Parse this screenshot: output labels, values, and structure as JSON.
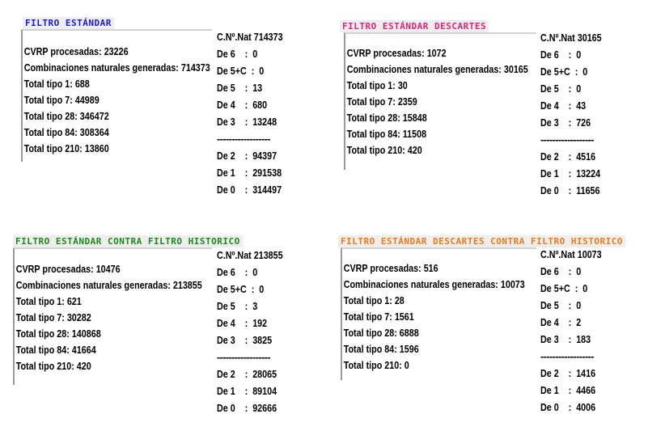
{
  "panels": [
    {
      "title": "FILTRO ESTÁNDAR",
      "title_color": "#1a1ad2",
      "title_bg": "#eeeeee",
      "lines": [
        "CVRP procesadas: 23226",
        "Combinaciones naturales generadas: 714373",
        "Total tipo 1: 688",
        "Total tipo 7: 44989",
        "Total tipo 28: 346472",
        "Total tipo 84: 308364",
        "Total tipo 210: 13860"
      ],
      "stats_header": "C.Nº.Nat 714373",
      "stats_top": [
        "De 6    :  0",
        "De 5+C  :  0",
        "De 5    :  13",
        "De 4    :  680",
        "De 3    :  13248"
      ],
      "separator": "------------------",
      "stats_bottom": [
        "De 2    :  94397",
        "De 1    :  291538",
        "De 0    :  314497"
      ]
    },
    {
      "title": "FILTRO ESTÁNDAR DESCARTES",
      "title_color": "#e0247a",
      "title_bg": "#eeeeee",
      "lines": [
        "CVRP procesadas: 1072",
        "Combinaciones naturales generadas: 30165",
        "Total tipo 1: 30",
        "Total tipo 7: 2359",
        "Total tipo 28: 15848",
        "Total tipo 84: 11508",
        "Total tipo 210: 420"
      ],
      "stats_header": "C.Nº.Nat 30165",
      "stats_top": [
        "De 6    :  0",
        "De 5+C  :  0",
        "De 5    :  0",
        "De 4    :  43",
        "De 3    :  726"
      ],
      "separator": "------------------",
      "stats_bottom": [
        "De 2    :  4516",
        "De 1    :  13224",
        "De 0    :  11656"
      ]
    },
    {
      "title": "FILTRO ESTÁNDAR CONTRA FILTRO HISTORICO",
      "title_color": "#1a8a1a",
      "title_bg": "#eeeeee",
      "lines": [
        "CVRP procesadas: 10476",
        "Combinaciones naturales generadas: 213855",
        "Total tipo 1: 621",
        "Total tipo 7: 30282",
        "Total tipo 28: 140868",
        "Total tipo 84: 41664",
        "Total tipo 210: 420"
      ],
      "stats_header": "C.Nº.Nat 213855",
      "stats_top": [
        "De 6    :  0",
        "De 5+C  :  0",
        "De 5    :  3",
        "De 4    :  192",
        "De 3    :  3825"
      ],
      "separator": "------------------",
      "stats_bottom": [
        "De 2    :  28065",
        "De 1    :  89104",
        "De 0    :  92666"
      ]
    },
    {
      "title": "FILTRO ESTÁNDAR DESCARTES CONTRA FILTRO HISTORICO",
      "title_color": "#f07a18",
      "title_bg": "#eeeeee",
      "lines": [
        "CVRP procesadas: 516",
        "Combinaciones naturales generadas: 10073",
        "Total tipo 1: 28",
        "Total tipo 7: 1561",
        "Total tipo 28: 6888",
        "Total tipo 84: 1596",
        "Total tipo 210: 0"
      ],
      "stats_header": "C.Nº.Nat 10073",
      "stats_top": [
        "De 6    :  0",
        "De 5+C  :  0",
        "De 5    :  0",
        "De 4    :  2",
        "De 3    :  183"
      ],
      "separator": "------------------",
      "stats_bottom": [
        "De 2    :  1416",
        "De 1    :  4466",
        "De 0    :  4006"
      ]
    }
  ]
}
